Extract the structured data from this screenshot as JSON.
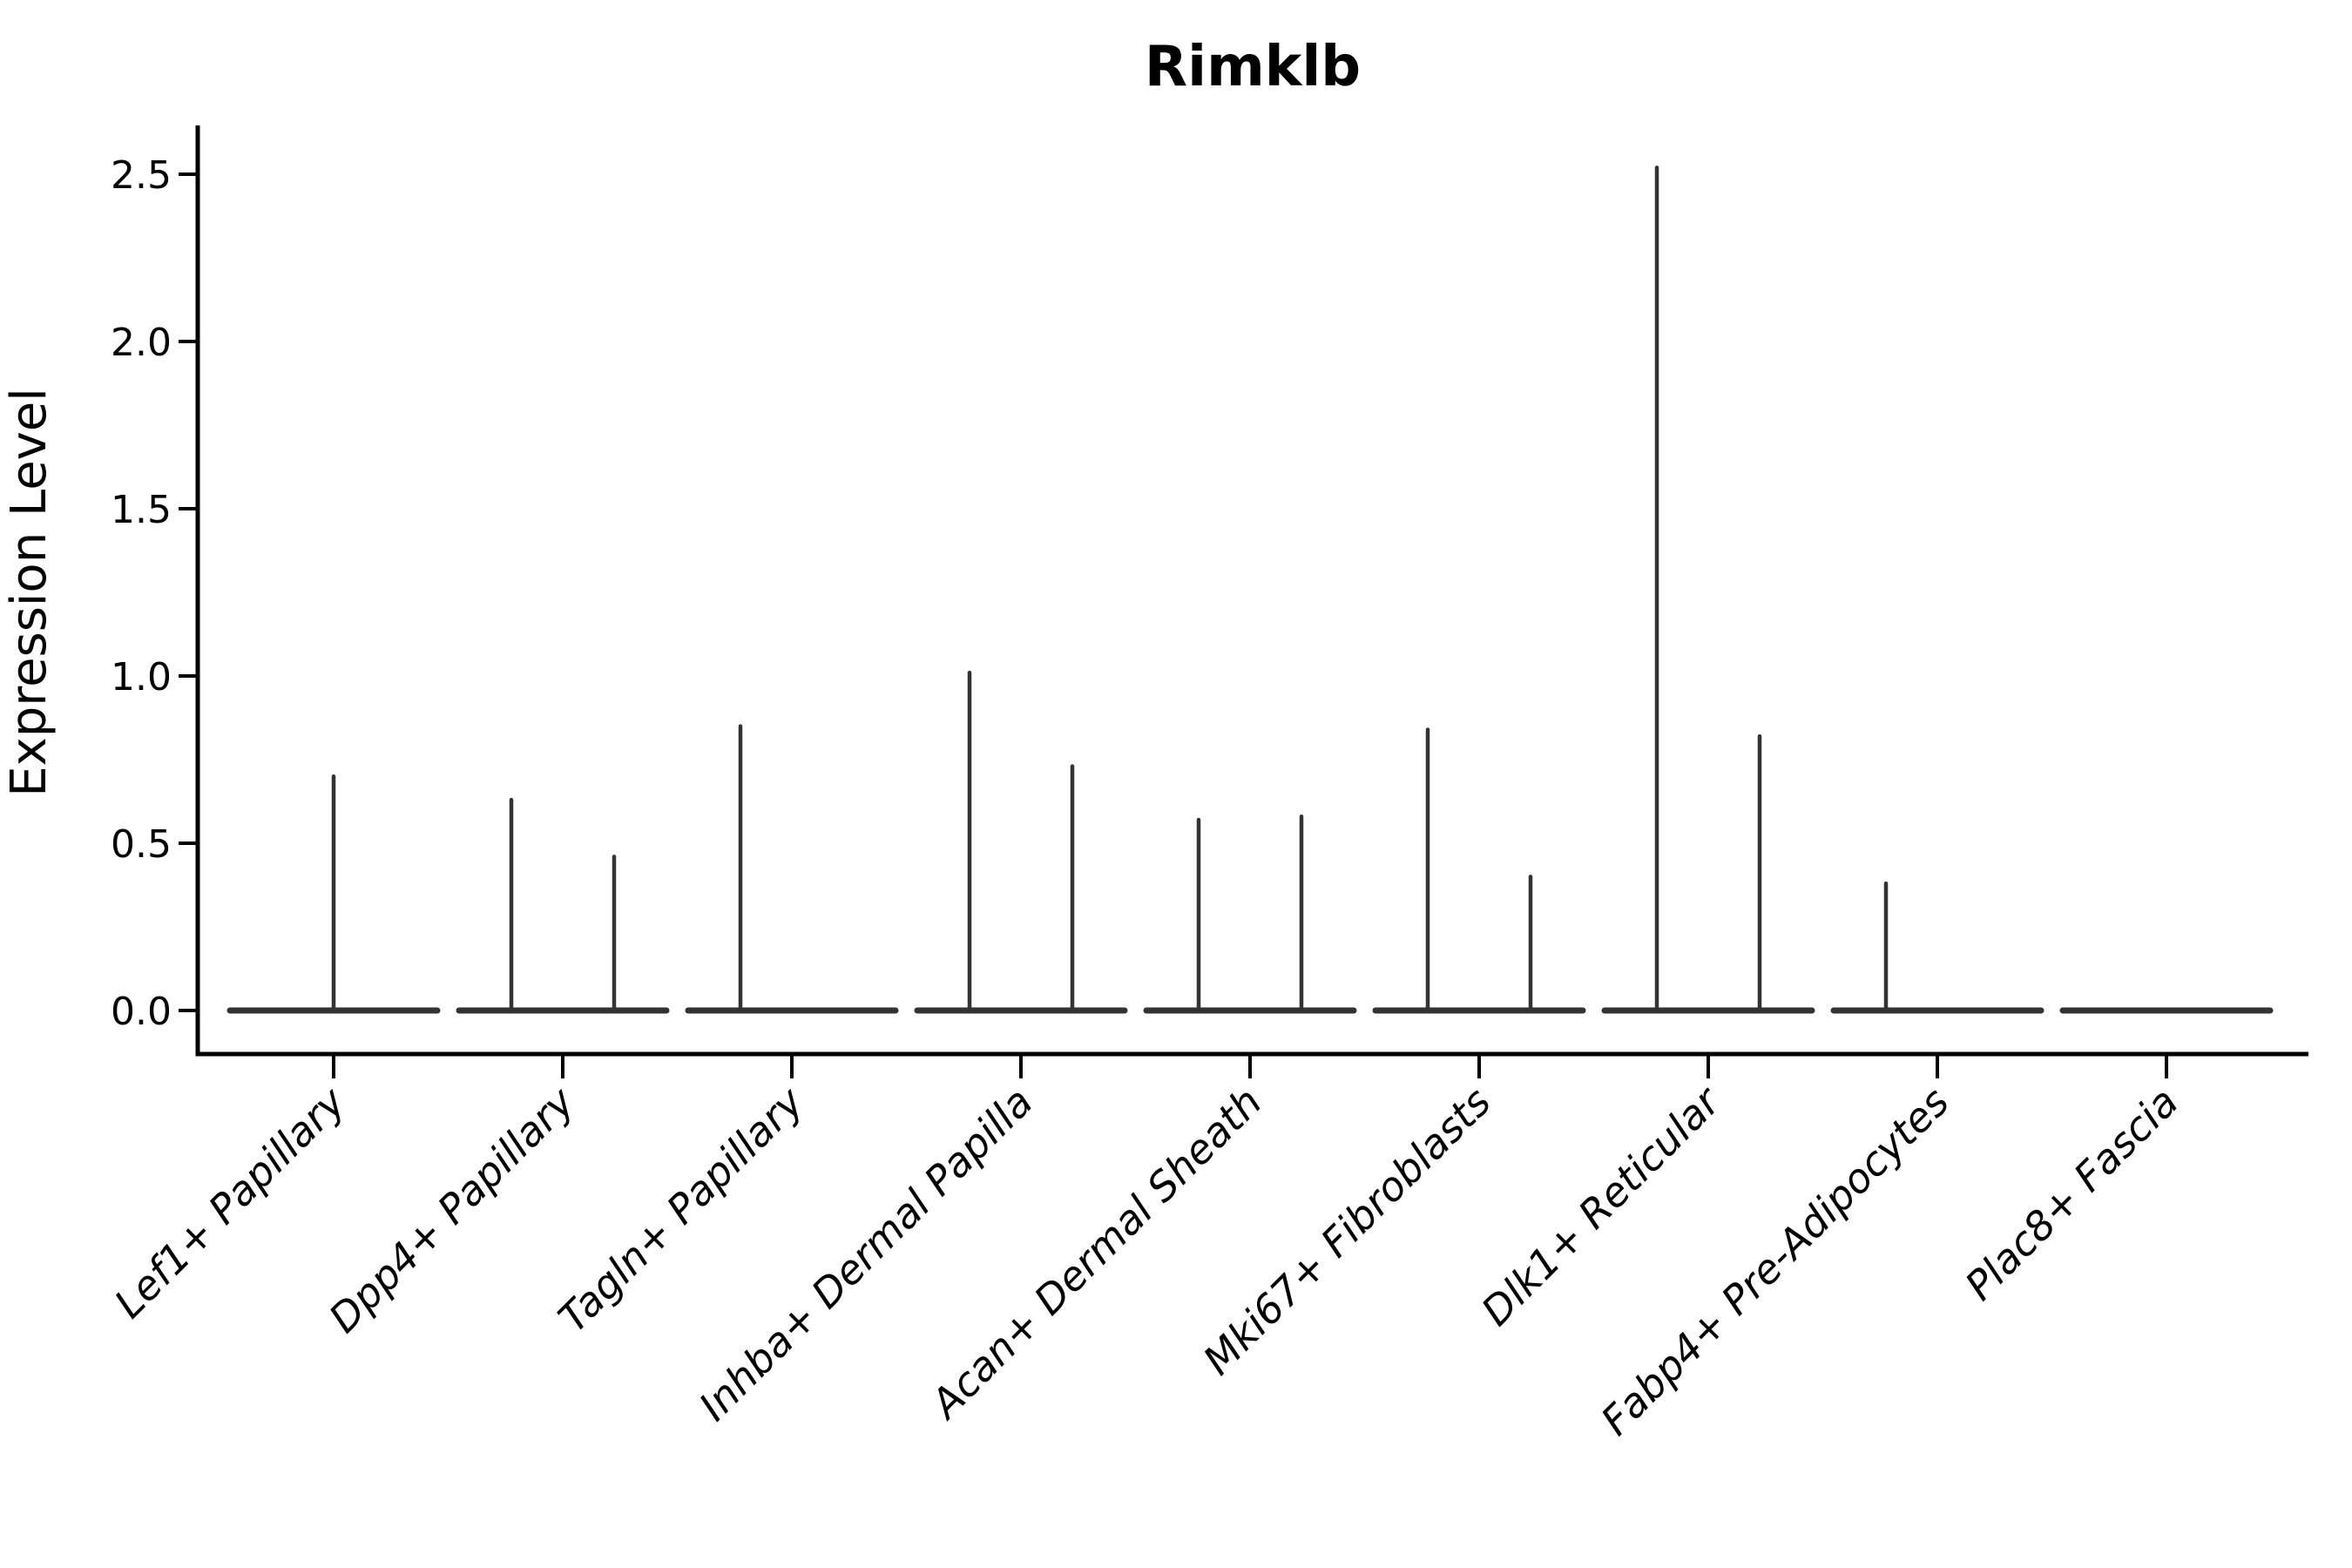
{
  "title": "Rimklb",
  "y_axis": {
    "label": "Expression Level",
    "tick_labels": [
      "0.0",
      "0.5",
      "1.0",
      "1.5",
      "2.0",
      "2.5"
    ]
  },
  "colors": {
    "violin_line": "#333333",
    "axis": "#000000",
    "background": "#ffffff"
  },
  "chart_data": {
    "type": "violin",
    "title": "Rimklb",
    "xlabel": "",
    "ylabel": "Expression Level",
    "ylim": [
      0,
      2.6
    ],
    "yticks": [
      0.0,
      0.5,
      1.0,
      1.5,
      2.0,
      2.5
    ],
    "grid": false,
    "legend": "none",
    "categories": [
      "Lef1+ Papillary",
      "Dpp4+ Papillary",
      "Tagln+ Papillary",
      "Inhba+ Dermal Papilla",
      "Acan+ Dermal Sheath",
      "Mki67+ Fibroblasts",
      "Dlk1+ Reticular",
      "Fabp4+ Pre-Adipocytes",
      "Plac8+ Fascia"
    ],
    "violins": [
      {
        "category": "Lef1+ Papillary",
        "zero_density_bulk": true,
        "spikes": [
          {
            "side": "center",
            "max": 0.7
          }
        ]
      },
      {
        "category": "Dpp4+ Papillary",
        "zero_density_bulk": true,
        "spikes": [
          {
            "side": "left",
            "max": 0.63
          },
          {
            "side": "right",
            "max": 0.46
          }
        ]
      },
      {
        "category": "Tagln+ Papillary",
        "zero_density_bulk": true,
        "spikes": [
          {
            "side": "left",
            "max": 0.85
          }
        ]
      },
      {
        "category": "Inhba+ Dermal Papilla",
        "zero_density_bulk": true,
        "spikes": [
          {
            "side": "left",
            "max": 1.01
          },
          {
            "side": "right",
            "max": 0.73
          }
        ]
      },
      {
        "category": "Acan+ Dermal Sheath",
        "zero_density_bulk": true,
        "spikes": [
          {
            "side": "left",
            "max": 0.57
          },
          {
            "side": "right",
            "max": 0.58
          }
        ]
      },
      {
        "category": "Mki67+ Fibroblasts",
        "zero_density_bulk": true,
        "spikes": [
          {
            "side": "left",
            "max": 0.84
          },
          {
            "side": "right",
            "max": 0.4
          }
        ]
      },
      {
        "category": "Dlk1+ Reticular",
        "zero_density_bulk": true,
        "spikes": [
          {
            "side": "left",
            "max": 2.52
          },
          {
            "side": "right",
            "max": 0.82
          }
        ]
      },
      {
        "category": "Fabp4+ Pre-Adipocytes",
        "zero_density_bulk": true,
        "spikes": [
          {
            "side": "left",
            "max": 0.38
          }
        ]
      },
      {
        "category": "Plac8+ Fascia",
        "zero_density_bulk": true,
        "spikes": []
      }
    ]
  }
}
